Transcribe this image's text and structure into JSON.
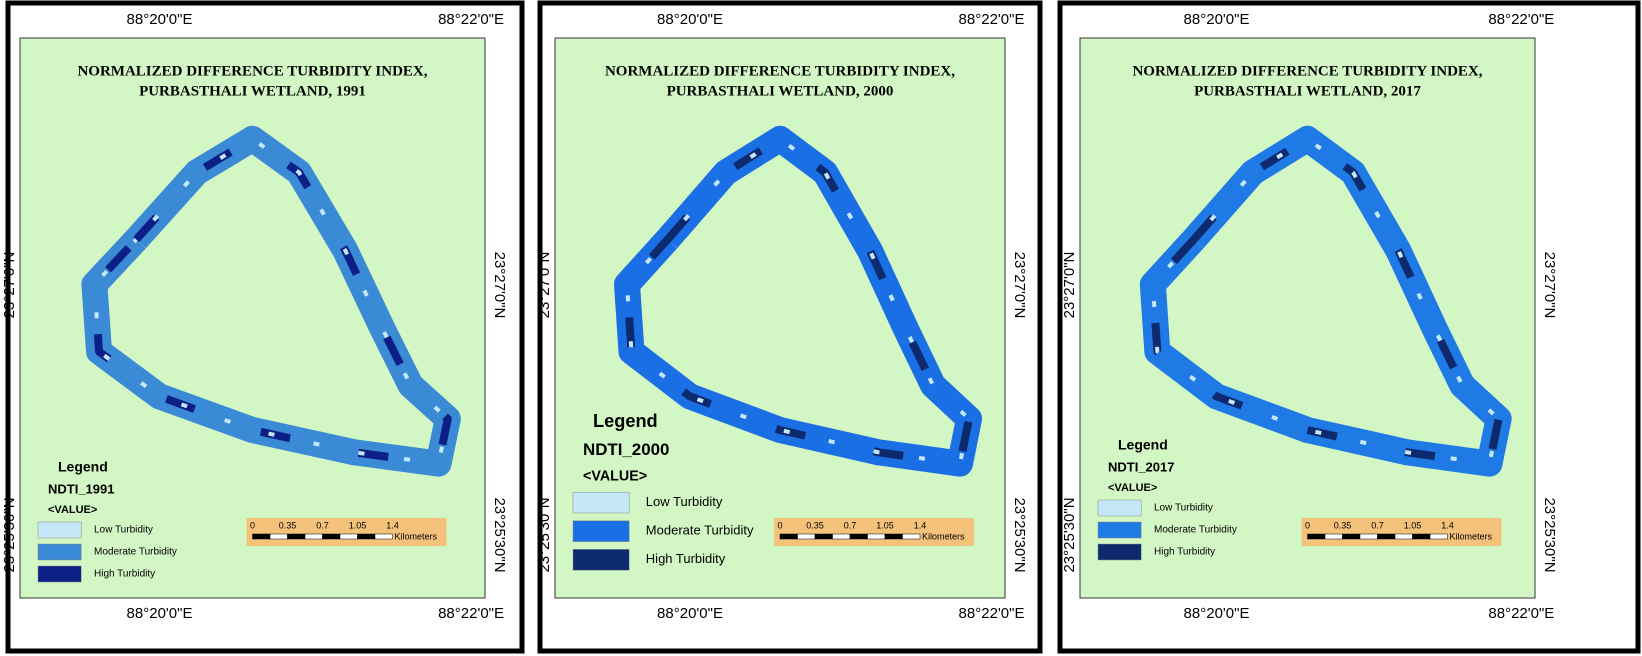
{
  "panels": [
    {
      "title": [
        "NORMALIZED DIFFERENCE TURBIDITY INDEX,",
        "PURBASTHALI WETLAND, 1991"
      ],
      "lon_labels": [
        "88°20'0\"E",
        "88°22'0\"E"
      ],
      "lat_labels": [
        "23°27'0\"N",
        "23°25'30\"N"
      ],
      "legend": {
        "title": "Legend",
        "layer": "NDTI_1991",
        "field": "<VALUE>",
        "items": [
          {
            "label": "Low Turbidity",
            "color": "#c4e8f8"
          },
          {
            "label": "Moderate Turbidity",
            "color": "#3a8ad6"
          },
          {
            "label": "High Turbidity",
            "color": "#0c1f86"
          }
        ]
      },
      "scale": {
        "ticks": [
          0,
          0.35,
          0.7,
          1.05,
          1.4
        ],
        "unit": "Kilometers"
      }
    },
    {
      "title": [
        "NORMALIZED DIFFERENCE TURBIDITY INDEX,",
        "PURBASTHALI WETLAND, 2000"
      ],
      "lon_labels": [
        "88°20'0\"E",
        "88°22'0\"E"
      ],
      "lat_labels": [
        "23°27'0\"N",
        "23°25'30\"N"
      ],
      "legend": {
        "title": "Legend",
        "layer": "NDTI_2000",
        "field": "<VALUE>",
        "items": [
          {
            "label": "Low Turbidity",
            "color": "#c4e8f8"
          },
          {
            "label": "Moderate Turbidity",
            "color": "#1b6fe4"
          },
          {
            "label": "High Turbidity",
            "color": "#0d2a6e"
          }
        ]
      },
      "scale": {
        "ticks": [
          0,
          0.35,
          0.7,
          1.05,
          1.4
        ],
        "unit": "Kilometers"
      }
    },
    {
      "title": [
        "NORMALIZED DIFFERENCE TURBIDITY INDEX,",
        "PURBASTHALI WETLAND, 2017"
      ],
      "lon_labels": [
        "88°20'0\"E",
        "88°22'0\"E"
      ],
      "lat_labels": [
        "23°27'0\"N",
        "23°25'30\"N"
      ],
      "legend": {
        "title": "Legend",
        "layer": "NDTI_2017",
        "field": "<VALUE>",
        "items": [
          {
            "label": "Low Turbidity",
            "color": "#c4e8f8"
          },
          {
            "label": "Moderate Turbidity",
            "color": "#1f7ae6"
          },
          {
            "label": "High Turbidity",
            "color": "#0d2a6e"
          }
        ]
      },
      "scale": {
        "ticks": [
          0,
          0.35,
          0.7,
          1.05,
          1.4
        ],
        "unit": "Kilometers"
      }
    }
  ]
}
